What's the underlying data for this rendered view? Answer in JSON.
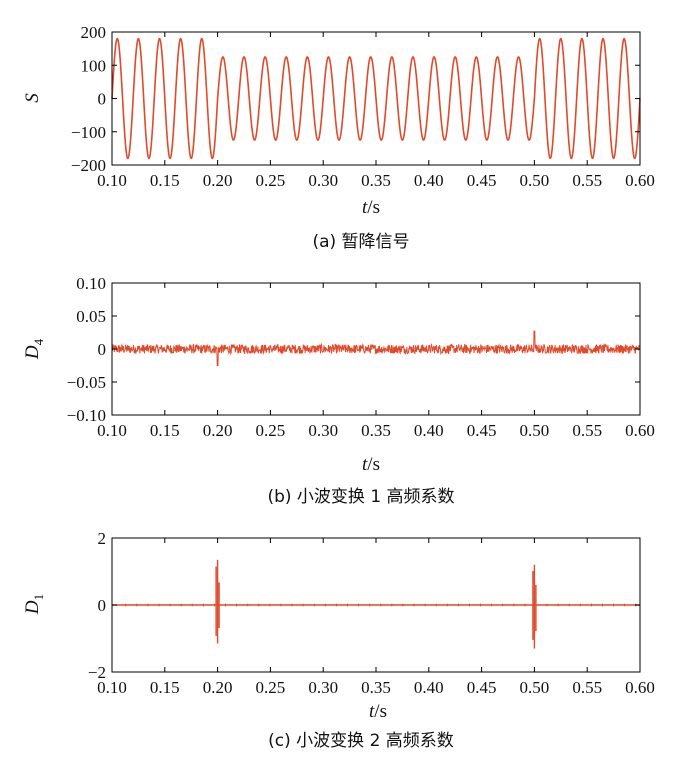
{
  "chart_data": [
    {
      "id": "a",
      "type": "line",
      "caption": "(a) 暂降信号",
      "ylabel": "S",
      "ylabel_sub": "",
      "xlabel": "t",
      "xlabel_unit": "/s",
      "xlim": [
        0.1,
        0.6
      ],
      "ylim": [
        -200,
        200
      ],
      "xticks": [
        0.1,
        0.15,
        0.2,
        0.25,
        0.3,
        0.35,
        0.4,
        0.45,
        0.5,
        0.55,
        0.6
      ],
      "xtick_labels": [
        "0.10",
        "0.15",
        "0.20",
        "0.25",
        "0.30",
        "0.35",
        "0.40",
        "0.45",
        "0.50",
        "0.55",
        "0.60"
      ],
      "yticks": [
        200,
        100,
        0,
        -100,
        -200
      ],
      "ytick_labels": [
        "200",
        "100",
        "0",
        "−100",
        "−200"
      ],
      "series": [
        {
          "kind": "sag-sine",
          "frequency_hz": 50,
          "amplitude": 180,
          "sag_amplitude": 125,
          "sag_start": 0.2,
          "sag_end": 0.5
        }
      ]
    },
    {
      "id": "b",
      "type": "line",
      "caption": "(b) 小波变换 1 高频系数",
      "ylabel": "D",
      "ylabel_sub": "4",
      "xlabel": "t",
      "xlabel_unit": "/s",
      "xlim": [
        0.1,
        0.6
      ],
      "ylim": [
        -0.1,
        0.1
      ],
      "xticks": [
        0.1,
        0.15,
        0.2,
        0.25,
        0.3,
        0.35,
        0.4,
        0.45,
        0.5,
        0.55,
        0.6
      ],
      "xtick_labels": [
        "0.10",
        "0.15",
        "0.20",
        "0.25",
        "0.30",
        "0.35",
        "0.40",
        "0.45",
        "0.50",
        "0.55",
        "0.60"
      ],
      "yticks": [
        0.1,
        0.05,
        0,
        -0.05,
        -0.1
      ],
      "ytick_labels": [
        "0.10",
        "0.05",
        "0",
        "−0.05",
        "−0.10"
      ],
      "series": [
        {
          "kind": "noise",
          "noise_amplitude": 0.007,
          "spikes": [
            {
              "t": 0.2,
              "value": -0.025
            },
            {
              "t": 0.5,
              "value": 0.027
            }
          ]
        }
      ]
    },
    {
      "id": "c",
      "type": "line",
      "caption": "(c) 小波变换 2 高频系数",
      "ylabel": "D",
      "ylabel_sub": "1",
      "xlabel": "t",
      "xlabel_unit": "/s",
      "xlim": [
        0.1,
        0.6
      ],
      "ylim": [
        -2,
        2
      ],
      "xticks": [
        0.1,
        0.15,
        0.2,
        0.25,
        0.3,
        0.35,
        0.4,
        0.45,
        0.5,
        0.55,
        0.6
      ],
      "xtick_labels": [
        "0.10",
        "0.15",
        "0.20",
        "0.25",
        "0.30",
        "0.35",
        "0.40",
        "0.45",
        "0.50",
        "0.55",
        "0.60"
      ],
      "yticks": [
        2,
        0,
        -2
      ],
      "ytick_labels": [
        "2",
        "0",
        "−2"
      ],
      "series": [
        {
          "kind": "impulses",
          "baseline": 0,
          "spikes": [
            {
              "t": 0.2,
              "max": 1.35,
              "min": -1.15
            },
            {
              "t": 0.5,
              "max": 1.2,
              "min": -1.3
            }
          ],
          "minor_amplitude": 0.04
        }
      ]
    }
  ],
  "colors": {
    "line": "#e04a2a",
    "axis": "#000000"
  }
}
